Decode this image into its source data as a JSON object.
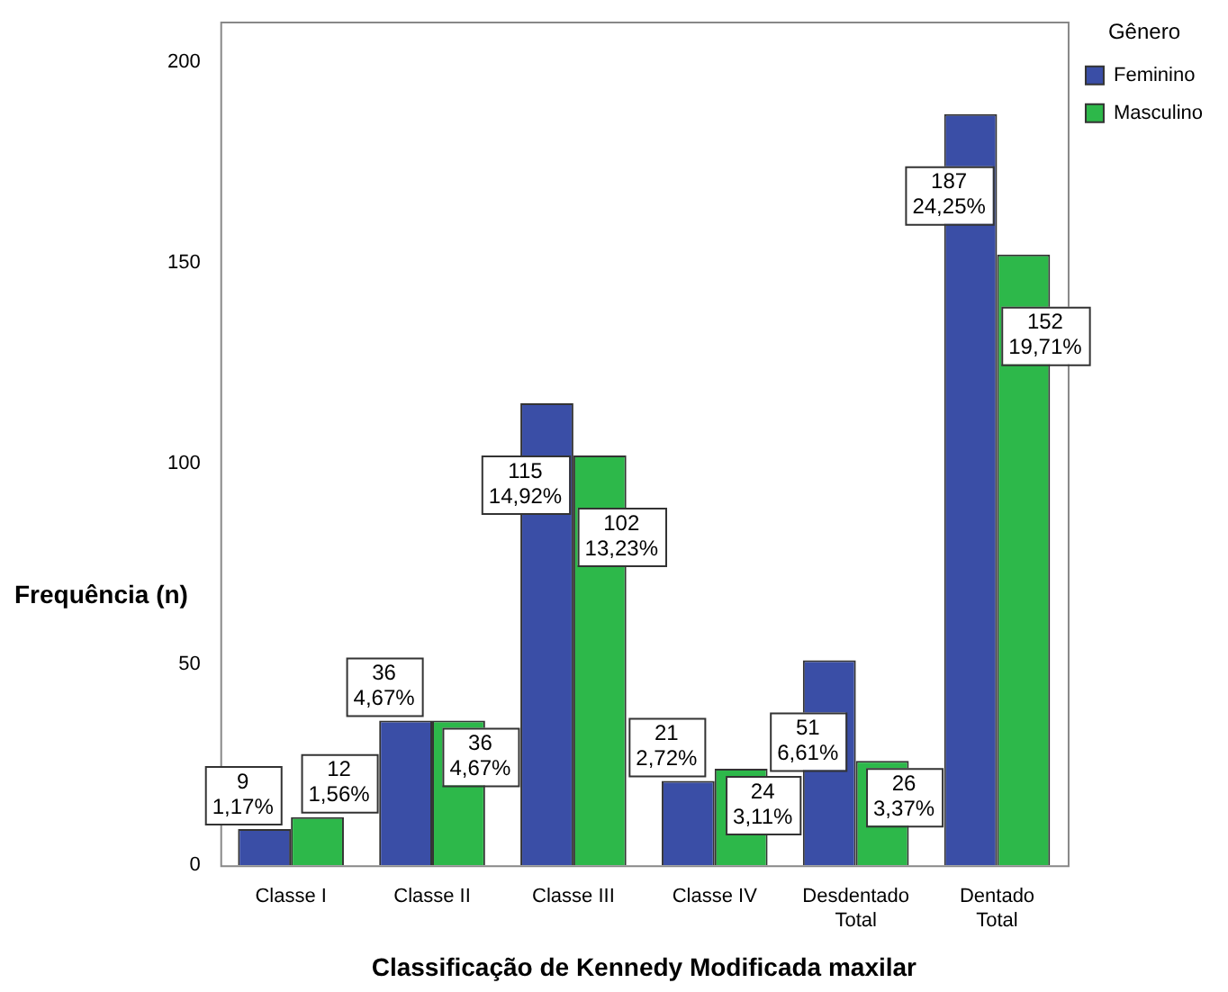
{
  "chart_data": {
    "type": "bar",
    "xlabel": "Classificação de Kennedy Modificada maxilar",
    "ylabel": "Frequência (n)",
    "legend_title": "Gênero",
    "legend": "top right",
    "categories": [
      "Classe I",
      "Classe II",
      "Classe III",
      "Classe IV",
      "Desdentado Total",
      "Dentado Total"
    ],
    "series": [
      {
        "name": "Feminino",
        "color": "#3a4ea6",
        "values": [
          9,
          36,
          115,
          21,
          51,
          187
        ],
        "value_labels": [
          "9\n1,17%",
          "36\n4,67%",
          "115\n14,92%",
          "21\n2,72%",
          "51\n6,61%",
          "187\n24,25%"
        ]
      },
      {
        "name": "Masculino",
        "color": "#2db84a",
        "values": [
          12,
          36,
          102,
          24,
          26,
          152
        ],
        "value_labels": [
          "12\n1,56%",
          "36\n4,67%",
          "102\n13,23%",
          "24\n3,11%",
          "26\n3,37%",
          "152\n19,71%"
        ]
      }
    ],
    "ylim": [
      0,
      210
    ],
    "yticks": [
      0,
      50,
      100,
      150,
      200
    ],
    "grid": false
  }
}
